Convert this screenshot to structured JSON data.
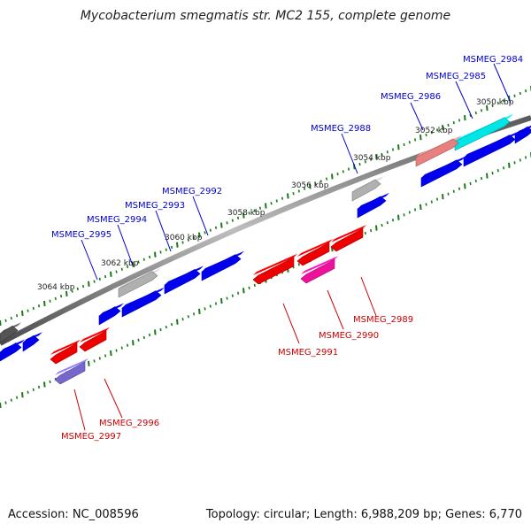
{
  "title": "Mycobacterium smegmatis str. MC2 155, complete genome",
  "footer": {
    "accession": "Accession: NC_008596",
    "summary": "Topology: circular; Length: 6,988,209 bp; Genes: 6,770"
  },
  "colors": {
    "forward_gene": "#0000ee",
    "reverse_gene": "#ee0000",
    "forward_label": "#0000cc",
    "reverse_label": "#cc0000",
    "tick": "#1a7a1a",
    "backbone": "#777777"
  },
  "scale_labels": [
    "3050 kbp",
    "3052 kbp",
    "3054 kbp",
    "3056 kbp",
    "3058 kbp",
    "3060 kbp",
    "3062 kbp",
    "3064 kbp"
  ],
  "gene_labels": {
    "forward": [
      "MSMEG_2984",
      "MSMEG_2985",
      "MSMEG_2986",
      "MSMEG_2988",
      "MSMEG_2992",
      "MSMEG_2993",
      "MSMEG_2994",
      "MSMEG_2995"
    ],
    "reverse": [
      "MSMEG_2989",
      "MSMEG_2990",
      "MSMEG_2991",
      "MSMEG_2996",
      "MSMEG_2997"
    ]
  },
  "features": [
    {
      "strand": "+",
      "color": "#0000ee"
    },
    {
      "strand": "+",
      "color": "#00e5e5"
    },
    {
      "strand": "+",
      "color": "#e88080"
    },
    {
      "strand": "+",
      "color": "#0000ee"
    },
    {
      "strand": "+",
      "color": "#0000ee"
    },
    {
      "strand": "+",
      "color": "#b0b0b0"
    },
    {
      "strand": "+",
      "color": "#0000ee"
    },
    {
      "strand": "+",
      "color": "#0000ee"
    },
    {
      "strand": "+",
      "color": "#0000ee"
    },
    {
      "strand": "+",
      "color": "#b0b0b0"
    },
    {
      "strand": "+",
      "color": "#0000ee"
    },
    {
      "strand": "+",
      "color": "#0000ee"
    },
    {
      "strand": "+",
      "color": "#0000ee"
    },
    {
      "strand": "+",
      "color": "#555555"
    },
    {
      "strand": "+",
      "color": "#0000ee"
    },
    {
      "strand": "-",
      "color": "#ee0000"
    },
    {
      "strand": "-",
      "color": "#ee0000"
    },
    {
      "strand": "-",
      "color": "#ee0000"
    },
    {
      "strand": "-",
      "color": "#ee1199"
    },
    {
      "strand": "-",
      "color": "#ee0000"
    },
    {
      "strand": "-",
      "color": "#ee0000"
    },
    {
      "strand": "-",
      "color": "#7766cc"
    }
  ]
}
